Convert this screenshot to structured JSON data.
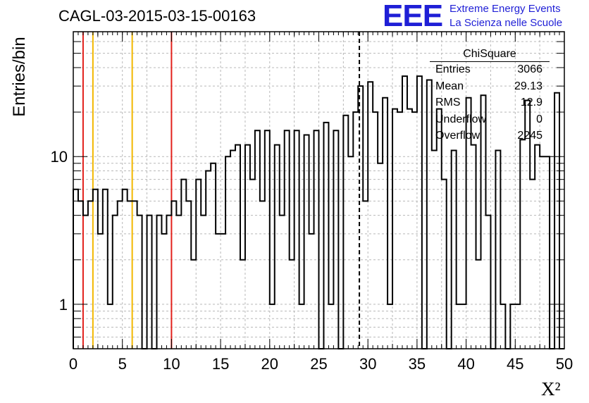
{
  "header": {
    "run_title": "CAGL-03-2015-03-15-00163",
    "logo_text": "EEE",
    "project_line1": "Extreme Energy Events",
    "project_line2": "La Scienza nelle Scuole",
    "logo_color": "#1f1fd6"
  },
  "stats_box": {
    "title": "ChiSquare",
    "rows": [
      {
        "label": "Entries",
        "value": "3066"
      },
      {
        "label": "Mean",
        "value": "29.13"
      },
      {
        "label": "RMS",
        "value": "12.9"
      },
      {
        "label": "Underflow",
        "value": "0"
      },
      {
        "label": "Overflow",
        "value": "2245"
      }
    ]
  },
  "chart_data": {
    "type": "histogram",
    "title": "CAGL-03-2015-03-15-00163",
    "xlabel": "X²",
    "ylabel": "Entries/bin",
    "xlim": [
      0,
      50
    ],
    "ylim": [
      0.5,
      70
    ],
    "y_scale": "log",
    "grid": true,
    "bin_width": 0.5,
    "x_tick_labels": [
      "0",
      "5",
      "10",
      "15",
      "20",
      "25",
      "30",
      "35",
      "40",
      "45",
      "50"
    ],
    "y_tick_labels": [
      {
        "value": 1,
        "label": "1"
      },
      {
        "value": 10,
        "label": "10"
      }
    ],
    "counts": [
      6,
      5,
      4,
      5,
      6,
      3,
      6,
      1,
      4,
      5,
      6,
      5,
      5,
      4,
      0,
      4,
      0,
      4,
      3,
      4,
      5,
      4,
      7,
      5,
      2,
      7,
      4,
      8,
      9,
      3,
      3,
      10,
      11,
      12,
      2,
      12,
      7,
      15,
      5,
      15,
      1,
      12,
      4,
      15,
      2,
      15,
      1,
      14,
      3,
      15,
      0,
      17,
      1,
      15,
      0,
      19,
      10,
      20,
      30,
      5,
      32,
      20,
      9,
      25,
      1,
      21,
      20,
      35,
      21,
      20,
      35,
      0,
      33,
      11,
      21,
      7,
      0,
      11,
      1,
      1,
      25,
      12,
      2,
      26,
      4,
      0,
      11,
      1,
      0,
      1,
      1,
      13,
      24,
      7,
      12,
      10,
      10,
      0,
      27,
      0
    ],
    "reference_lines": [
      {
        "x": 1,
        "color": "#e2211c"
      },
      {
        "x": 2,
        "color": "#f2b800"
      },
      {
        "x": 6,
        "color": "#f2b800"
      },
      {
        "x": 10,
        "color": "#e2211c"
      },
      {
        "x": 29.13,
        "color": "#000000",
        "style": "dashed"
      }
    ]
  }
}
